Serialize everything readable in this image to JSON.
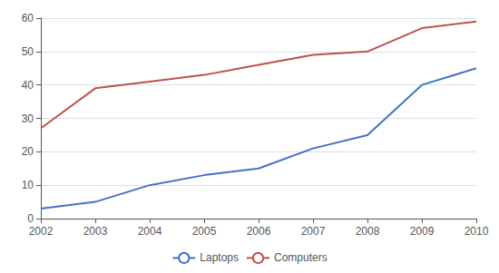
{
  "chart_data": {
    "type": "line",
    "x": [
      2002,
      2003,
      2004,
      2005,
      2006,
      2007,
      2008,
      2009,
      2010
    ],
    "series": [
      {
        "name": "Laptops",
        "color": "#4472C4",
        "values": [
          3,
          5,
          10,
          13,
          15,
          21,
          25,
          40,
          45
        ]
      },
      {
        "name": "Computers",
        "color": "#C0504D",
        "values": [
          27,
          39,
          41,
          43,
          46,
          49,
          50,
          57,
          59
        ]
      }
    ],
    "xlim": [
      2002,
      2010
    ],
    "xticks": [
      2002,
      2003,
      2004,
      2005,
      2006,
      2007,
      2008,
      2009,
      2010
    ],
    "ylim": [
      0,
      60
    ],
    "yticks": [
      0,
      10,
      20,
      30,
      40,
      50,
      60
    ],
    "grid": true,
    "legend": "bottom"
  }
}
